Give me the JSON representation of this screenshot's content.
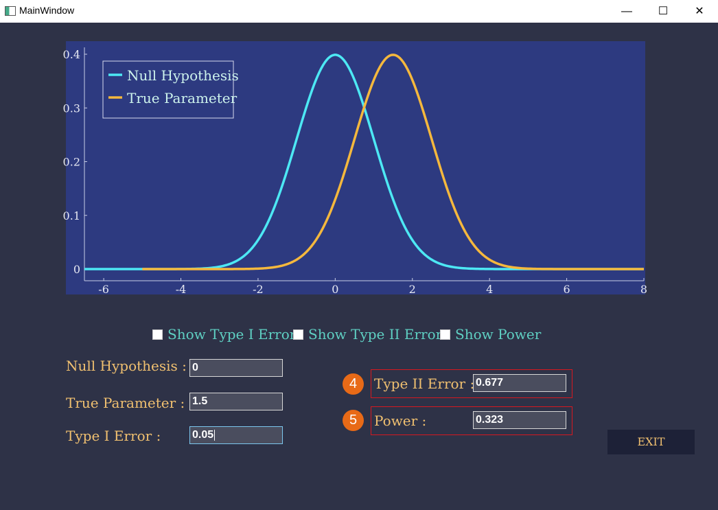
{
  "window": {
    "title": "MainWindow",
    "minimize": "—",
    "maximize": "☐",
    "close": "✕"
  },
  "chart_data": {
    "type": "line",
    "xlim": [
      -6.5,
      8
    ],
    "ylim": [
      0,
      0.4
    ],
    "x_ticks": [
      "-6",
      "-4",
      "-2",
      "0",
      "2",
      "4",
      "6",
      "8"
    ],
    "y_ticks": [
      "0",
      "0.1",
      "0.2",
      "0.3",
      "0.4"
    ],
    "legend_position": "top-left",
    "series": [
      {
        "name": "Null Hypothesis",
        "color": "#4de8f4",
        "mean": 0,
        "sd": 1,
        "x_range": [
          -6.5,
          8
        ]
      },
      {
        "name": "True Parameter",
        "color": "#f5b83d",
        "mean": 1.5,
        "sd": 1,
        "x_range": [
          -5,
          8
        ]
      }
    ]
  },
  "checkboxes": {
    "type1": "Show Type I Error",
    "type2": "Show Type II Error",
    "power": "Show Power"
  },
  "inputs": {
    "null_label": "Null Hypothesis :",
    "null_value": "0",
    "true_label": "True Parameter :",
    "true_value": "1.5",
    "type1_label": "Type I Error :",
    "type1_value": "0.05"
  },
  "results": {
    "badge_type2": "4",
    "type2_label": "Type II Error :",
    "type2_value": "0.677",
    "badge_power": "5",
    "power_label": "Power :",
    "power_value": "0.323"
  },
  "exit_label": "EXIT"
}
